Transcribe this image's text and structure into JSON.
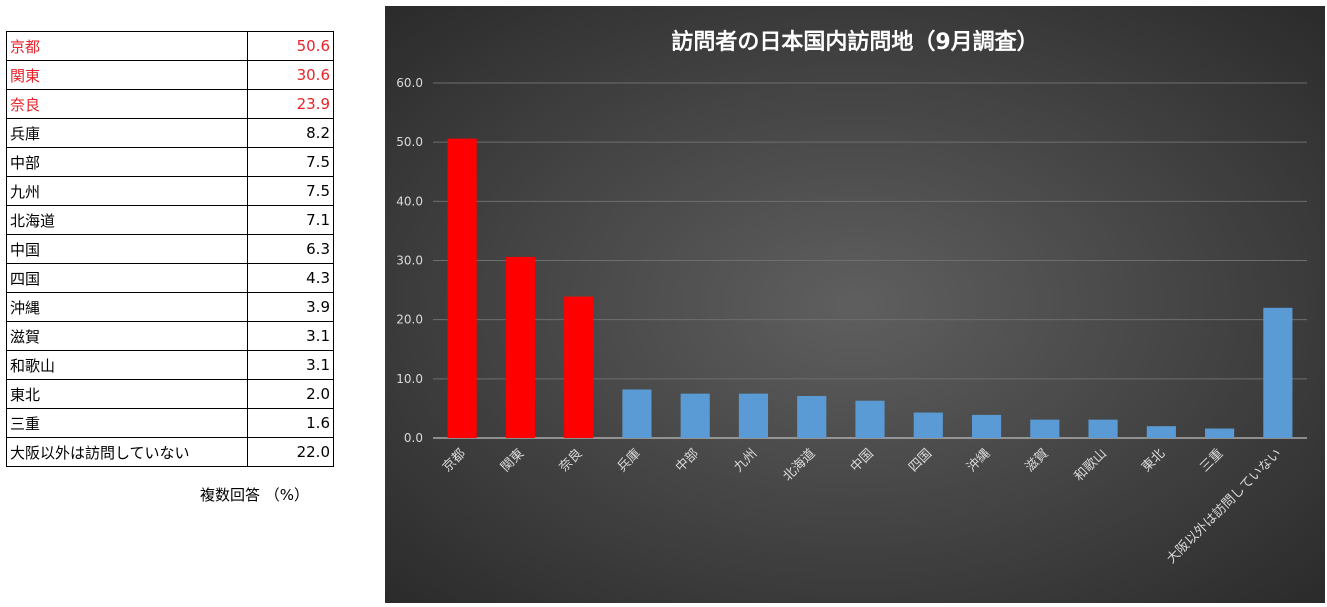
{
  "table": {
    "rows": [
      {
        "label": "京都",
        "value": "50.6",
        "highlight": true
      },
      {
        "label": "関東",
        "value": "30.6",
        "highlight": true
      },
      {
        "label": "奈良",
        "value": "23.9",
        "highlight": true
      },
      {
        "label": "兵庫",
        "value": "8.2",
        "highlight": false
      },
      {
        "label": "中部",
        "value": "7.5",
        "highlight": false
      },
      {
        "label": "九州",
        "value": "7.5",
        "highlight": false
      },
      {
        "label": "北海道",
        "value": "7.1",
        "highlight": false
      },
      {
        "label": "中国",
        "value": "6.3",
        "highlight": false
      },
      {
        "label": "四国",
        "value": "4.3",
        "highlight": false
      },
      {
        "label": "沖縄",
        "value": "3.9",
        "highlight": false
      },
      {
        "label": "滋賀",
        "value": "3.1",
        "highlight": false
      },
      {
        "label": "和歌山",
        "value": "3.1",
        "highlight": false
      },
      {
        "label": "東北",
        "value": "2.0",
        "highlight": false
      },
      {
        "label": "三重",
        "value": "1.6",
        "highlight": false
      },
      {
        "label": "大阪以外は訪問していない",
        "value": "22.0",
        "highlight": false
      }
    ],
    "note": "複数回答 （%）"
  },
  "chart_data": {
    "type": "bar",
    "title": "訪問者の日本国内訪問地（9月調査）",
    "categories": [
      "京都",
      "関東",
      "奈良",
      "兵庫",
      "中部",
      "九州",
      "北海道",
      "中国",
      "四国",
      "沖縄",
      "滋賀",
      "和歌山",
      "東北",
      "三重",
      "大阪以外は訪問していない"
    ],
    "values": [
      50.6,
      30.6,
      23.9,
      8.2,
      7.5,
      7.5,
      7.1,
      6.3,
      4.3,
      3.9,
      3.1,
      3.1,
      2.0,
      1.6,
      22.0
    ],
    "highlight_count": 3,
    "ylim": [
      0,
      60
    ],
    "yticks": [
      "0.0",
      "10.0",
      "20.0",
      "30.0",
      "40.0",
      "50.0",
      "60.0"
    ],
    "grid": true,
    "legend": "none",
    "colors": {
      "highlight": "#ff0000",
      "normal": "#5b9bd5",
      "background_center": "#5f5f5f",
      "background_edge": "#2b2b2b",
      "text": "#ffffff",
      "axis_text": "#d9d9d9",
      "grid": "#6e6e6e"
    }
  }
}
